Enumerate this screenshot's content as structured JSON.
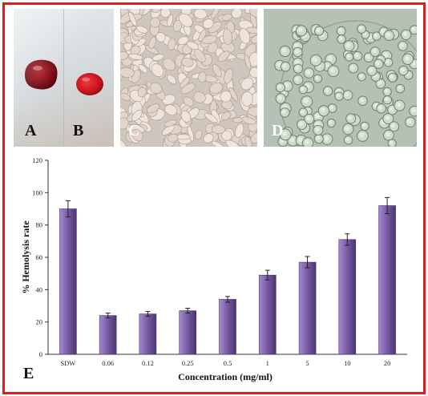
{
  "colors": {
    "frame": "#e01b1b",
    "bar_fill": "#7b5ea7",
    "bar_edge": "#4b3570",
    "blood_dark": "#7a0a14",
    "blood_bright": "#c8141e"
  },
  "panels": [
    {
      "letter": "A",
      "content": "blood-drop-dark"
    },
    {
      "letter": "B",
      "content": "blood-drop-bright"
    },
    {
      "letter": "C",
      "content": "micrograph-lysed-cells"
    },
    {
      "letter": "D",
      "content": "micrograph-intact-cells"
    },
    {
      "letter": "E",
      "content": "bar-chart"
    }
  ],
  "chart_data": {
    "type": "bar",
    "categories": [
      "SDW",
      "0.06",
      "0.12",
      "0.25",
      "0.5",
      "1",
      "5",
      "10",
      "20"
    ],
    "values": [
      90,
      24,
      25,
      27,
      34,
      49,
      57,
      71,
      92
    ],
    "errors": [
      5,
      1.5,
      1.5,
      1.5,
      1.8,
      3,
      3.5,
      3.5,
      5
    ],
    "xlabel": "Concentration (mg/ml)",
    "ylabel": "% Hemolysis rate",
    "ylim": [
      0,
      120
    ],
    "yticks": [
      "0",
      "20",
      "40",
      "60",
      "80",
      "100",
      "120"
    ],
    "grid": false,
    "legend": "none",
    "panel_letter": "E"
  }
}
